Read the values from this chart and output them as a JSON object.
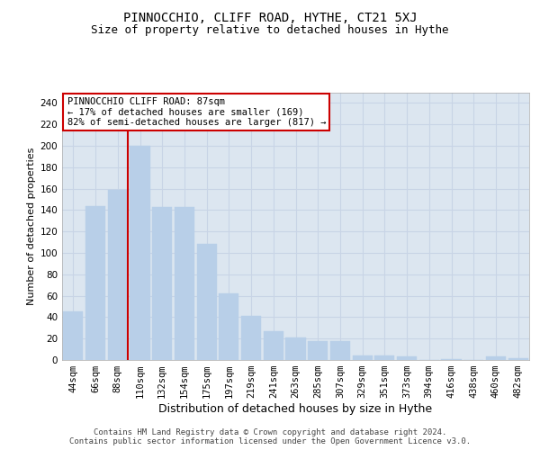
{
  "title": "PINNOCCHIO, CLIFF ROAD, HYTHE, CT21 5XJ",
  "subtitle": "Size of property relative to detached houses in Hythe",
  "xlabel": "Distribution of detached houses by size in Hythe",
  "ylabel": "Number of detached properties",
  "categories": [
    "44sqm",
    "66sqm",
    "88sqm",
    "110sqm",
    "132sqm",
    "154sqm",
    "175sqm",
    "197sqm",
    "219sqm",
    "241sqm",
    "263sqm",
    "285sqm",
    "307sqm",
    "329sqm",
    "351sqm",
    "373sqm",
    "394sqm",
    "416sqm",
    "438sqm",
    "460sqm",
    "482sqm"
  ],
  "values": [
    45,
    144,
    159,
    200,
    143,
    143,
    108,
    62,
    41,
    27,
    21,
    18,
    18,
    4,
    4,
    3,
    0,
    1,
    0,
    3,
    2
  ],
  "bar_color": "#b8cfe8",
  "bar_edgecolor": "#b8cfe8",
  "grid_color": "#c8d4e6",
  "background_color": "#dce6f0",
  "vline_color": "#cc0000",
  "vline_index": 2,
  "annotation_text": "PINNOCCHIO CLIFF ROAD: 87sqm\n← 17% of detached houses are smaller (169)\n82% of semi-detached houses are larger (817) →",
  "annotation_box_facecolor": "#ffffff",
  "annotation_box_edgecolor": "#cc0000",
  "footer_text": "Contains HM Land Registry data © Crown copyright and database right 2024.\nContains public sector information licensed under the Open Government Licence v3.0.",
  "ylim": [
    0,
    250
  ],
  "yticks": [
    0,
    20,
    40,
    60,
    80,
    100,
    120,
    140,
    160,
    180,
    200,
    220,
    240
  ],
  "title_fontsize": 10,
  "subtitle_fontsize": 9,
  "ylabel_fontsize": 8,
  "xlabel_fontsize": 9,
  "tick_fontsize": 7.5,
  "footer_fontsize": 6.5
}
